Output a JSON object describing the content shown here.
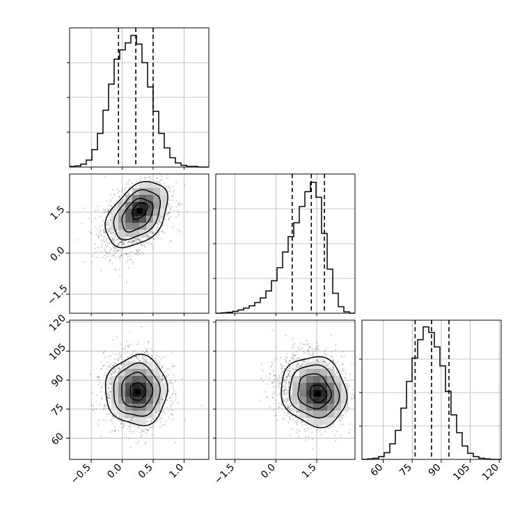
{
  "chart_data": {
    "type": "corner",
    "parameters": [
      {
        "range": [
          -0.85,
          1.4
        ],
        "ticks": [
          -0.5,
          0.0,
          0.5,
          1.0
        ],
        "tick_labels": [
          "−0.5",
          "0.0",
          "0.5",
          "1.0"
        ],
        "quantiles": [
          -0.06,
          0.22,
          0.5
        ]
      },
      {
        "range": [
          -2.2,
          2.9
        ],
        "ticks": [
          -1.5,
          0.0,
          1.5
        ],
        "tick_labels": [
          "−1.5",
          "0.0",
          "1.5"
        ],
        "quantiles": [
          0.6,
          1.3,
          1.78
        ]
      },
      {
        "range": [
          49,
          121
        ],
        "ticks": [
          60,
          75,
          90,
          105,
          120
        ],
        "tick_labels": [
          "60",
          "75",
          "90",
          "105",
          "120"
        ],
        "quantiles": [
          76.5,
          85,
          94
        ]
      }
    ],
    "histograms": [
      {
        "bin_edges": [
          -0.85,
          -0.76,
          -0.67,
          -0.58,
          -0.49,
          -0.4,
          -0.31,
          -0.22,
          -0.13,
          -0.04,
          0.05,
          0.14,
          0.23,
          0.32,
          0.41,
          0.5,
          0.59,
          0.68,
          0.77,
          0.86,
          0.95,
          1.04,
          1.13,
          1.22,
          1.31,
          1.4
        ],
        "counts": [
          1,
          2,
          5,
          12,
          30,
          58,
          98,
          143,
          186,
          202,
          214,
          227,
          212,
          180,
          138,
          96,
          58,
          33,
          16,
          7,
          3,
          1,
          1,
          0,
          0
        ],
        "ylim": [
          0,
          240
        ],
        "ticks": [
          60,
          120,
          180
        ]
      },
      {
        "bin_edges": [
          -2.2,
          -1.996,
          -1.792,
          -1.588,
          -1.384,
          -1.18,
          -0.976,
          -0.772,
          -0.568,
          -0.364,
          -0.16,
          0.044,
          0.248,
          0.452,
          0.656,
          0.86,
          1.064,
          1.268,
          1.472,
          1.676,
          1.88,
          2.084,
          2.288,
          2.492,
          2.696,
          2.9
        ],
        "counts": [
          0,
          1,
          2,
          4,
          7,
          11,
          16,
          23,
          33,
          48,
          70,
          98,
          132,
          165,
          195,
          230,
          262,
          282,
          250,
          172,
          95,
          43,
          14,
          3,
          0
        ],
        "ylim": [
          0,
          300
        ],
        "ticks": [
          75,
          150,
          225
        ]
      },
      {
        "bin_edges": [
          49,
          51.88,
          54.76,
          57.64,
          60.52,
          63.4,
          66.28,
          69.16,
          72.04,
          74.92,
          77.8,
          80.68,
          83.56,
          86.44,
          89.32,
          92.2,
          95.08,
          97.96,
          100.84,
          103.72,
          106.6,
          109.48,
          112.36,
          115.24,
          118.12,
          121
        ],
        "counts": [
          0,
          1,
          2,
          5,
          12,
          28,
          52,
          92,
          140,
          182,
          215,
          238,
          228,
          202,
          168,
          122,
          80,
          48,
          24,
          11,
          5,
          2,
          1,
          0,
          0
        ],
        "ylim": [
          0,
          250
        ],
        "ticks": [
          60,
          120,
          180
        ]
      }
    ],
    "pairs": [
      {
        "x_param": 0,
        "y_param": 1,
        "center": [
          0.22,
          1.3
        ],
        "std": [
          0.25,
          0.6
        ],
        "rho": 0.4,
        "peak_shift": [
          0.06,
          0.25
        ]
      },
      {
        "x_param": 0,
        "y_param": 2,
        "center": [
          0.22,
          85
        ],
        "std": [
          0.25,
          9
        ],
        "rho": 0.0,
        "peak_shift": [
          0.03,
          -1
        ]
      },
      {
        "x_param": 1,
        "y_param": 2,
        "center": [
          1.3,
          85
        ],
        "std": [
          0.6,
          9
        ],
        "rho": -0.1,
        "peak_shift": [
          0.25,
          -2
        ]
      }
    ],
    "contour_levels_sigma": [
      0.5,
      1.0,
      1.5,
      2.0
    ],
    "grid": true,
    "xlabel": "",
    "ylabel": "",
    "title": ""
  }
}
